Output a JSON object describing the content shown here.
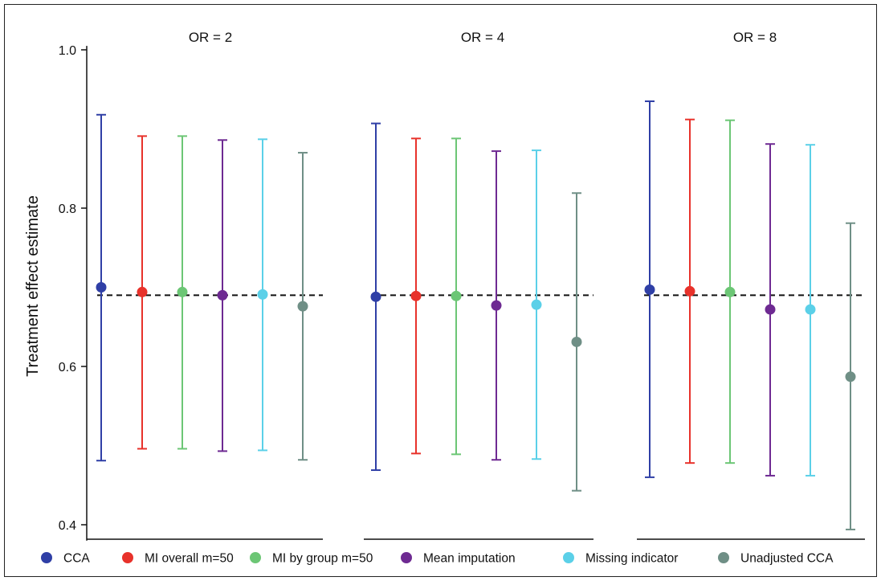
{
  "chart_data": {
    "type": "scatter",
    "subtype": "point-with-error-bars (faceted)",
    "ylabel": "Treatment effect estimate",
    "xlabel": "",
    "ylim": [
      0.38,
      1.02
    ],
    "yticks": [
      0.4,
      0.6,
      0.8,
      1.0
    ],
    "ytick_labels": [
      "0.4",
      "0.6",
      "0.8",
      "1.0"
    ],
    "reference_line": 0.69,
    "grid": false,
    "legend_position": "bottom",
    "series_names": [
      "CCA",
      "MI overall m=50",
      "MI by group m=50",
      "Mean imputation",
      "Missing indicator",
      "Unadjusted CCA"
    ],
    "colors": [
      "#2f3fa6",
      "#e8322b",
      "#6cc675",
      "#6e2a92",
      "#5bd0e8",
      "#6f8f86"
    ],
    "panels": [
      {
        "title": "OR = 2",
        "estimates": [
          0.7,
          0.694,
          0.694,
          0.69,
          0.691,
          0.676
        ],
        "lower": [
          0.481,
          0.496,
          0.496,
          0.493,
          0.494,
          0.482
        ],
        "upper": [
          0.918,
          0.891,
          0.891,
          0.886,
          0.887,
          0.87
        ]
      },
      {
        "title": "OR = 4",
        "estimates": [
          0.688,
          0.689,
          0.689,
          0.677,
          0.678,
          0.631
        ],
        "lower": [
          0.469,
          0.49,
          0.489,
          0.482,
          0.483,
          0.443
        ],
        "upper": [
          0.907,
          0.888,
          0.888,
          0.872,
          0.873,
          0.819
        ]
      },
      {
        "title": "OR = 8",
        "estimates": [
          0.697,
          0.695,
          0.694,
          0.672,
          0.672,
          0.587
        ],
        "lower": [
          0.46,
          0.478,
          0.478,
          0.462,
          0.462,
          0.394
        ],
        "upper": [
          0.935,
          0.912,
          0.911,
          0.881,
          0.88,
          0.781
        ]
      }
    ]
  }
}
